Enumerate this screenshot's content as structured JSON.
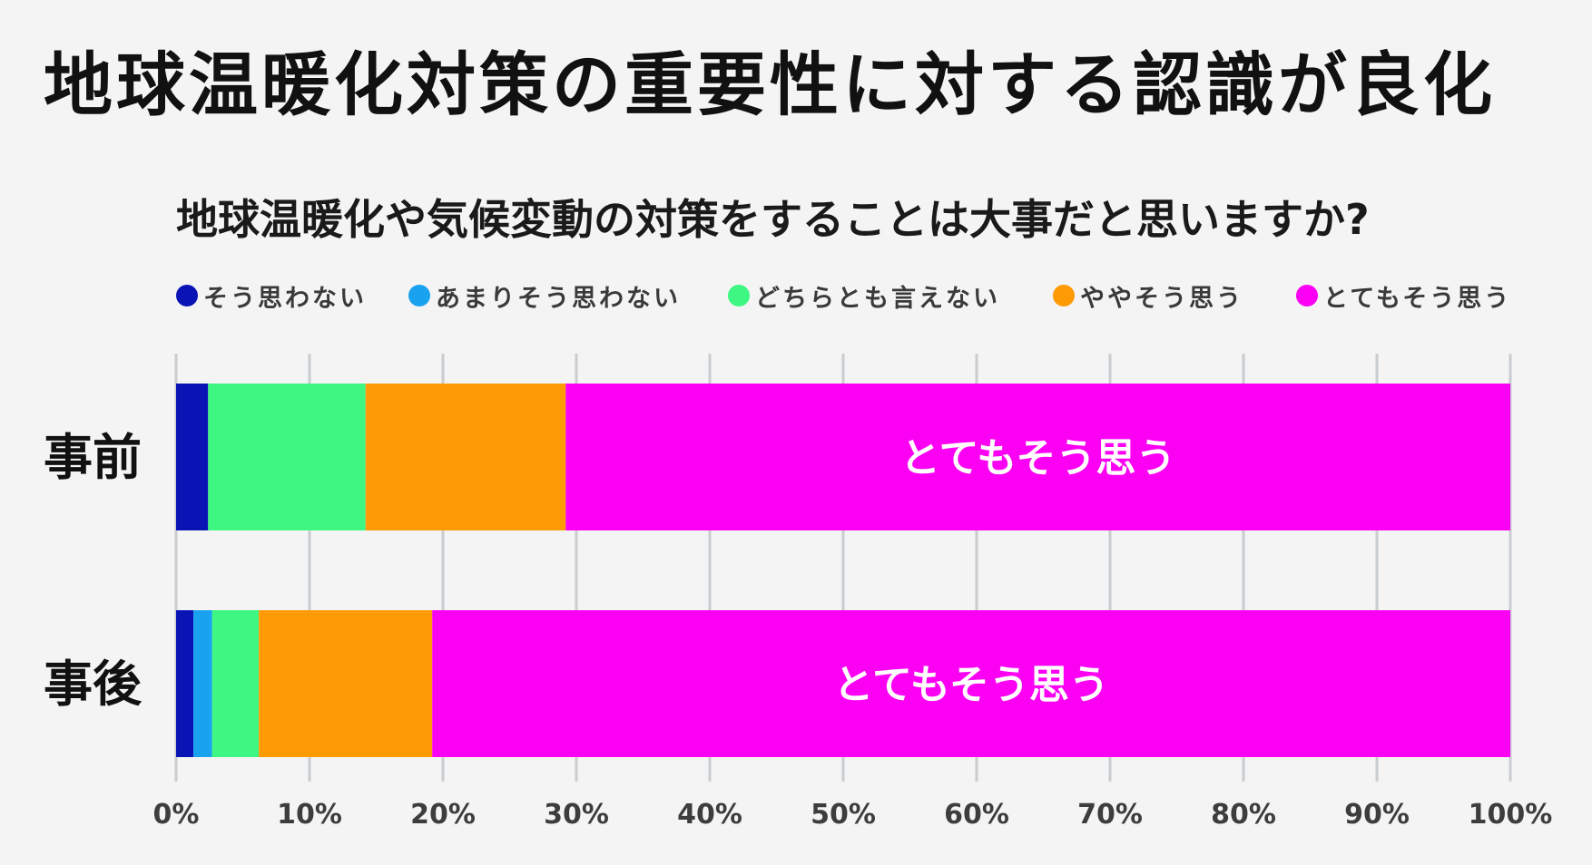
{
  "title": "地球温暖化対策の重要性に対する認識が良化",
  "colors": {
    "background": "#f4f4f4",
    "grid": "#c9cdd0"
  },
  "chart_data": {
    "type": "bar",
    "orientation": "horizontal",
    "stacked": true,
    "title": "地球温暖化や気候変動の対策をすることは大事だと思いますか?",
    "categories": [
      "事前",
      "事後"
    ],
    "series": [
      {
        "name": "そう思わない",
        "color": "#0a14b4",
        "values": [
          2.4,
          1.3
        ]
      },
      {
        "name": "あまりそう思わない",
        "color": "#18a2f0",
        "values": [
          0,
          1.4
        ]
      },
      {
        "name": "どちらとも言えない",
        "color": "#3df782",
        "values": [
          11.8,
          3.5
        ]
      },
      {
        "name": "ややそう思う",
        "color": "#fd9a04",
        "values": [
          15.0,
          13.0
        ]
      },
      {
        "name": "とてもそう思う",
        "color": "#fc00f4",
        "values": [
          70.8,
          80.8
        ]
      }
    ],
    "data_labels": [
      "とてもそう思う",
      "とてもそう思う"
    ],
    "xlim": [
      0,
      100
    ],
    "x_ticks": [
      "0%",
      "10%",
      "20%",
      "30%",
      "40%",
      "50%",
      "60%",
      "70%",
      "80%",
      "90%",
      "100%"
    ],
    "grid": true,
    "legend_position": "top"
  }
}
